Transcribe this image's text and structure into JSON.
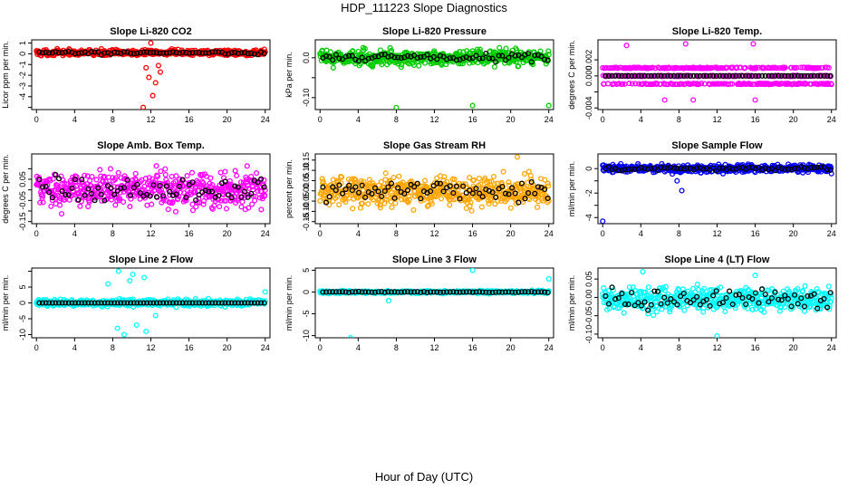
{
  "title": "HDP_111223  Slope Diagnostics",
  "xlabel": "Hour of Day (UTC)",
  "x_ticks": [
    0,
    4,
    8,
    12,
    16,
    20,
    24
  ],
  "chart_data": [
    {
      "type": "scatter",
      "title": "Slope Li-820 CO2",
      "ylabel": "Licor ppm per min.",
      "color": "#ff0000",
      "ylim": [
        -5.2,
        1.3
      ],
      "yticks": [
        -5,
        -4,
        -3,
        -2,
        -1,
        0,
        1
      ],
      "ytick_labels": [
        "",
        "-4",
        "-3",
        "-2",
        "-1",
        "0",
        "1"
      ],
      "xlim": [
        -0.5,
        24.5
      ],
      "base": 0.1,
      "spread": 0.25,
      "black_spread": 0.15,
      "outliers": [
        [
          11.2,
          -5.0
        ],
        [
          12.2,
          -3.9
        ],
        [
          12.5,
          -2.7
        ],
        [
          11.8,
          -2.2
        ],
        [
          13.0,
          -1.7
        ],
        [
          12.0,
          1.0
        ],
        [
          12.8,
          -1.1
        ],
        [
          11.5,
          -1.3
        ]
      ],
      "marker": "circle",
      "band": false
    },
    {
      "type": "scatter",
      "title": "Slope Li-820 Pressure",
      "ylabel": "kPa per min.",
      "color": "#00cc00",
      "ylim": [
        -0.13,
        0.045
      ],
      "yticks": [
        -0.1,
        -0.05,
        0.0
      ],
      "ytick_labels": [
        "-0.10",
        "",
        "0.0"
      ],
      "xlim": [
        -0.5,
        24.5
      ],
      "base": 0.0,
      "spread": 0.018,
      "black_spread": 0.012,
      "outliers": [
        [
          8.0,
          -0.125
        ],
        [
          16.0,
          -0.12
        ],
        [
          24.0,
          -0.12
        ]
      ],
      "marker": "circle",
      "band": false
    },
    {
      "type": "scatter",
      "title": "Slope Li-820 Temp.",
      "ylabel": "degrees C per min.",
      "color": "#ff00ff",
      "ylim": [
        -0.0042,
        0.0045
      ],
      "yticks": [
        -0.004,
        -0.002,
        0.0,
        0.002
      ],
      "ytick_labels": [
        "-0.004",
        "",
        "0.000",
        "0.002"
      ],
      "xlim": [
        -0.5,
        24.5
      ],
      "base": 0.0,
      "spread": 0.001,
      "black_spread": 0.0,
      "outliers": [
        [
          2.5,
          0.0038
        ],
        [
          8.7,
          0.004
        ],
        [
          15.8,
          0.004
        ],
        [
          6.5,
          -0.003
        ],
        [
          9.5,
          -0.003
        ],
        [
          16.0,
          -0.003
        ]
      ],
      "marker": "circle",
      "band": true
    },
    {
      "type": "scatter",
      "title": "Slope Amb. Box Temp.",
      "ylabel": "degrees C per min.",
      "color": "#ff00ff",
      "ylim": [
        -0.16,
        0.17
      ],
      "yticks": [
        -0.15,
        -0.1,
        -0.05,
        0.0,
        0.05,
        0.1
      ],
      "ytick_labels": [
        "-0.15",
        "",
        "-0.05",
        "",
        "0.05",
        ""
      ],
      "xlim": [
        -0.5,
        24.5
      ],
      "base": 0.0,
      "spread": 0.08,
      "black_spread": 0.06,
      "outliers": [],
      "marker": "circle",
      "band": false
    },
    {
      "type": "scatter",
      "title": "Slope Gas Stream RH",
      "ylabel": "percent per min.",
      "color": "#ffa500",
      "ylim": [
        -0.16,
        0.18
      ],
      "yticks": [
        -0.15,
        -0.1,
        -0.05,
        0.0,
        0.05,
        0.1,
        0.15
      ],
      "ytick_labels": [
        "-0.15",
        "-0.10",
        "-0.05",
        "0.00",
        "0.05",
        "0.10",
        "0.15"
      ],
      "xlim": [
        -0.5,
        24.5
      ],
      "base": 0.0,
      "spread": 0.07,
      "black_spread": 0.05,
      "outliers": [
        [
          20.7,
          0.165
        ]
      ],
      "marker": "circle",
      "band": false
    },
    {
      "type": "scatter",
      "title": "Slope Sample Flow",
      "ylabel": "ml/min per min.",
      "color": "#0000ff",
      "ylim": [
        -4.5,
        1.2
      ],
      "yticks": [
        -4,
        -3,
        -2,
        -1,
        0
      ],
      "ytick_labels": [
        "-4",
        "",
        "-2",
        "",
        "0"
      ],
      "xlim": [
        -0.5,
        24.5
      ],
      "base": 0.0,
      "spread": 0.3,
      "black_spread": 0.15,
      "outliers": [
        [
          0.0,
          -4.3
        ],
        [
          8.3,
          -1.8
        ],
        [
          7.8,
          -1.0
        ]
      ],
      "marker": "circle",
      "band": false
    },
    {
      "type": "scatter",
      "title": "Slope Line 2 Flow",
      "ylabel": "ml/min per min.",
      "color": "#00ffff",
      "ylim": [
        -11,
        11
      ],
      "yticks": [
        -10,
        -5,
        0,
        5,
        10
      ],
      "ytick_labels": [
        "-10",
        "-5",
        "0",
        "5",
        ""
      ],
      "xlim": [
        -0.5,
        24.5
      ],
      "base": 0.0,
      "spread": 1.0,
      "black_spread": 0.0,
      "outliers": [
        [
          8.5,
          -8
        ],
        [
          9.2,
          -10
        ],
        [
          10.5,
          -7
        ],
        [
          11.5,
          -9
        ],
        [
          8.6,
          10
        ],
        [
          10.1,
          9
        ],
        [
          11.3,
          8
        ],
        [
          9.8,
          7
        ],
        [
          12.5,
          -4
        ],
        [
          7.5,
          6
        ],
        [
          24.0,
          3.5
        ]
      ],
      "marker": "circle",
      "band": false
    },
    {
      "type": "scatter",
      "title": "Slope Line 3 Flow",
      "ylabel": "ml/min per min.",
      "color": "#00ffff",
      "ylim": [
        -10.5,
        5.5
      ],
      "yticks": [
        -10,
        -5,
        0,
        5
      ],
      "ytick_labels": [
        "-10",
        "-5",
        "0",
        "5"
      ],
      "xlim": [
        -0.5,
        24.5
      ],
      "base": 0.0,
      "spread": 0.3,
      "black_spread": 0.1,
      "outliers": [
        [
          3.2,
          -10.5
        ],
        [
          16.0,
          5.0
        ],
        [
          24.0,
          3.0
        ],
        [
          7.2,
          -2.0
        ]
      ],
      "marker": "circle",
      "band": false
    },
    {
      "type": "scatter",
      "title": "Slope Line 4 (LT) Flow",
      "ylabel": "ml/min per min.",
      "color": "#00ffff",
      "ylim": [
        -0.11,
        0.08
      ],
      "yticks": [
        -0.1,
        -0.05,
        0.0,
        0.05
      ],
      "ytick_labels": [
        "-0.10",
        "-0.05",
        "0.00",
        "0.05"
      ],
      "xlim": [
        -0.5,
        24.5
      ],
      "base": -0.005,
      "spread": 0.03,
      "black_spread": 0.025,
      "outliers": [
        [
          4.2,
          0.07
        ],
        [
          12.0,
          -0.105
        ],
        [
          16.0,
          0.06
        ]
      ],
      "marker": "circle",
      "band": false
    }
  ]
}
